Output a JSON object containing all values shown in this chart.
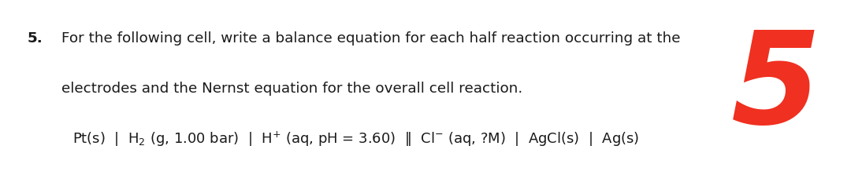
{
  "question_number": "5.",
  "line1": "For the following cell, write a balance equation for each half reaction occurring at the",
  "line2": "electrodes and the Nernst equation for the overall cell reaction.",
  "background_color": "#ffffff",
  "text_color": "#1a1a1a",
  "red_color": "#f03020",
  "font_size_body": 13.2,
  "font_size_cell": 13.0,
  "fig_width": 10.8,
  "fig_height": 2.23
}
